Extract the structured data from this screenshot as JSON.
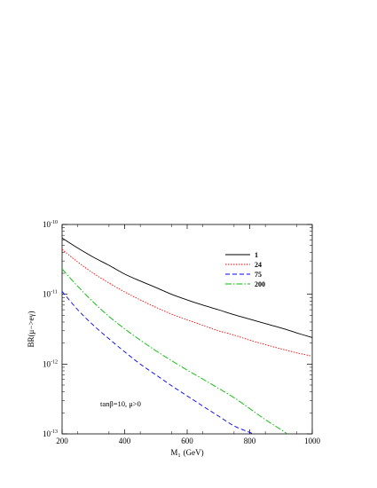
{
  "chart_data": {
    "type": "line",
    "title": "",
    "xlabel": "M",
    "xlabel_sub": "1",
    "xlabel_unit": "(GeV)",
    "ylabel": "BR(μ−>eγ)",
    "xlim": [
      200,
      1000
    ],
    "ylim": [
      1e-13,
      1e-10
    ],
    "yscale": "log",
    "grid": false,
    "legend_position": "top-right",
    "x_ticks": [
      200,
      400,
      600,
      800,
      1000
    ],
    "x_tick_labels": [
      "200",
      "400",
      "600",
      "800",
      "1000"
    ],
    "y_ticks": [
      1e-13,
      1e-12,
      1e-11,
      1e-10
    ],
    "y_tick_labels": [
      {
        "base": "10",
        "exp": "-13"
      },
      {
        "base": "10",
        "exp": "-12"
      },
      {
        "base": "10",
        "exp": "-11"
      },
      {
        "base": "10",
        "exp": "-10"
      }
    ],
    "annotation": "tanβ=10, μ>0",
    "series": [
      {
        "name": "1",
        "color": "#000000",
        "dash": "",
        "x": [
          200,
          250,
          300,
          350,
          400,
          450,
          500,
          550,
          600,
          650,
          700,
          750,
          800,
          850,
          900,
          950,
          1000
        ],
        "y": [
          6.4e-11,
          4.6e-11,
          3.4e-11,
          2.6e-11,
          1.95e-11,
          1.55e-11,
          1.25e-11,
          1e-11,
          8.3e-12,
          7e-12,
          6e-12,
          5.1e-12,
          4.4e-12,
          3.8e-12,
          3.3e-12,
          2.8e-12,
          2.4e-12
        ]
      },
      {
        "name": "24",
        "color": "#ff0000",
        "dash": "1.5,1.5",
        "x": [
          200,
          250,
          300,
          350,
          400,
          450,
          500,
          550,
          600,
          650,
          700,
          750,
          800,
          850,
          900,
          950,
          1000
        ],
        "y": [
          4.4e-11,
          2.9e-11,
          2e-11,
          1.45e-11,
          1.08e-11,
          8.3e-12,
          6.5e-12,
          5.2e-12,
          4.3e-12,
          3.6e-12,
          3e-12,
          2.6e-12,
          2.2e-12,
          1.9e-12,
          1.65e-12,
          1.45e-12,
          1.3e-12
        ]
      },
      {
        "name": "75",
        "color": "#0000ff",
        "dash": "5,3",
        "x": [
          200,
          250,
          300,
          350,
          400,
          450,
          500,
          550,
          600,
          650,
          700,
          750,
          800,
          810
        ],
        "y": [
          1.1e-11,
          6e-12,
          3.6e-12,
          2.3e-12,
          1.5e-12,
          1e-12,
          7e-13,
          4.9e-13,
          3.5e-13,
          2.5e-13,
          1.8e-13,
          1.3e-13,
          1.05e-13,
          1e-13
        ]
      },
      {
        "name": "200",
        "color": "#00bb00",
        "dash": "7,2,1.5,2",
        "x": [
          200,
          250,
          300,
          350,
          400,
          450,
          500,
          550,
          600,
          650,
          700,
          750,
          800,
          850,
          900,
          920
        ],
        "y": [
          2.3e-11,
          1.3e-11,
          7.7e-12,
          4.8e-12,
          3.2e-12,
          2.2e-12,
          1.55e-12,
          1.12e-12,
          8.2e-13,
          6.1e-13,
          4.5e-13,
          3.3e-13,
          2.3e-13,
          1.6e-13,
          1.15e-13,
          1e-13
        ]
      }
    ]
  }
}
